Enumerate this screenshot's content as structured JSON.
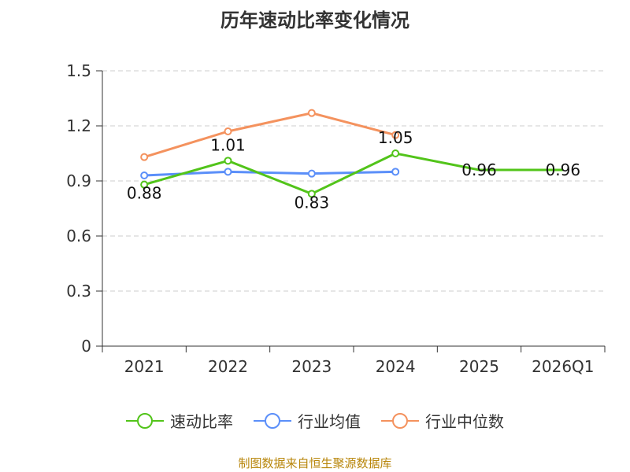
{
  "chart_data": {
    "type": "line",
    "title": "历年速动比率变化情况",
    "categories": [
      "2021",
      "2022",
      "2023",
      "2024",
      "2025",
      "2026Q1"
    ],
    "yticks": [
      "0",
      "0.3",
      "0.6",
      "0.9",
      "1.2",
      "1.5"
    ],
    "ylim": [
      0,
      1.5
    ],
    "series": [
      {
        "name": "速动比率",
        "color": "#52c41a",
        "values": [
          0.88,
          1.01,
          0.83,
          1.05,
          0.96,
          0.96
        ],
        "labels": [
          "0.88",
          "1.01",
          "0.83",
          "1.05",
          "0.96",
          "0.96"
        ],
        "markers": [
          true,
          true,
          true,
          true,
          false,
          false
        ]
      },
      {
        "name": "行业均值",
        "color": "#5b8ff9",
        "values": [
          0.93,
          0.95,
          0.94,
          0.95,
          null,
          null
        ]
      },
      {
        "name": "行业中位数",
        "color": "#f4925e",
        "values": [
          1.03,
          1.17,
          1.27,
          1.15,
          null,
          null
        ]
      }
    ],
    "source": "制图数据来自恒生聚源数据库"
  }
}
